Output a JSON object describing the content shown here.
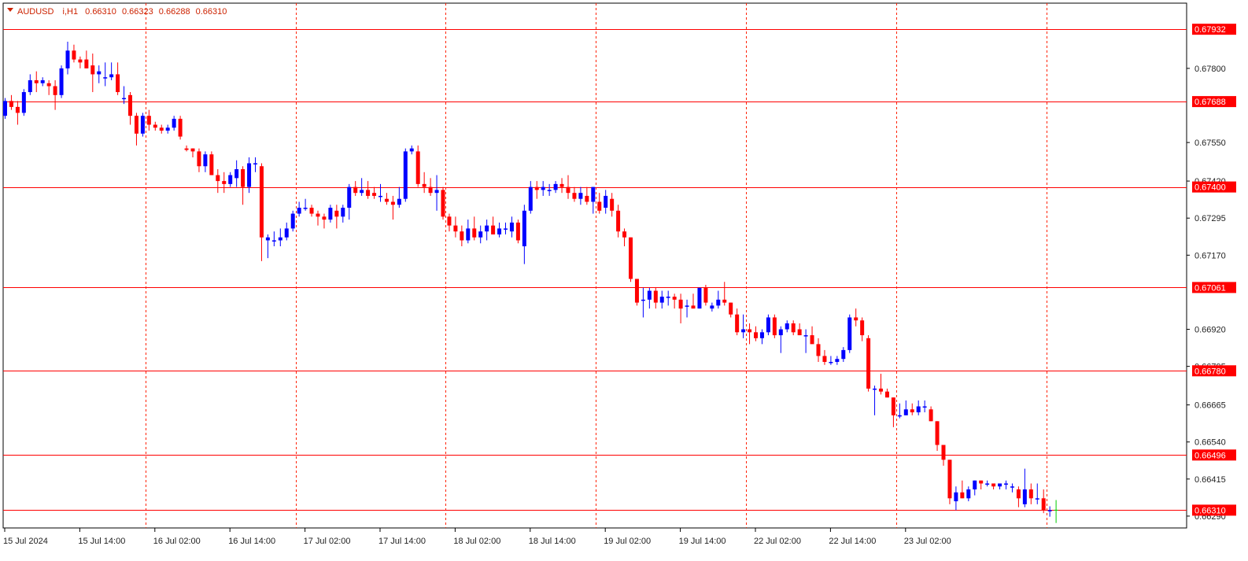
{
  "header": {
    "symbol": "AUDUSD",
    "timeframe": "i,H1",
    "open": "0.66310",
    "high": "0.66323",
    "low": "0.66288",
    "close": "0.66310"
  },
  "colors": {
    "bull": "#0000ff",
    "bear": "#ff0000",
    "level_line": "#ff0000",
    "session_line": "#ff2200",
    "axis": "#000000",
    "last_tick": "#00cc00"
  },
  "chart_data": {
    "type": "candlestick",
    "symbol": "AUDUSD",
    "timeframe": "H1",
    "ylim": [
      0.6625,
      0.6802
    ],
    "y_ticks": [
      "0.67800",
      "0.67550",
      "0.67420",
      "0.67295",
      "0.67170",
      "0.66920",
      "0.66795",
      "0.66665",
      "0.66540",
      "0.66415",
      "0.66290"
    ],
    "x_ticks": [
      "15 Jul 2024",
      "15 Jul 14:00",
      "16 Jul 02:00",
      "16 Jul 14:00",
      "17 Jul 02:00",
      "17 Jul 14:00",
      "18 Jul 02:00",
      "18 Jul 14:00",
      "19 Jul 02:00",
      "19 Jul 14:00",
      "22 Jul 02:00",
      "22 Jul 14:00",
      "23 Jul 02:00"
    ],
    "x_tick_bars": [
      0,
      12,
      24,
      36,
      48,
      60,
      72,
      84,
      96,
      108,
      120,
      132,
      144
    ],
    "session_separator_bars": [
      22,
      46,
      70,
      94,
      118,
      142,
      166
    ],
    "levels": [
      "0.67932",
      "0.67688",
      "0.67400",
      "0.67061",
      "0.66780",
      "0.66496",
      "0.66310"
    ],
    "candles": [
      [
        0.6764,
        0.677,
        0.6763,
        0.6769
      ],
      [
        0.6769,
        0.6771,
        0.6766,
        0.6767
      ],
      [
        0.6767,
        0.6769,
        0.6761,
        0.6765
      ],
      [
        0.6765,
        0.6773,
        0.6764,
        0.6772
      ],
      [
        0.6772,
        0.6778,
        0.6771,
        0.6776
      ],
      [
        0.6776,
        0.6779,
        0.6772,
        0.6775
      ],
      [
        0.6775,
        0.6777,
        0.6774,
        0.6776
      ],
      [
        0.6775,
        0.6776,
        0.6771,
        0.6774
      ],
      [
        0.6774,
        0.6776,
        0.6766,
        0.6771
      ],
      [
        0.6771,
        0.6781,
        0.677,
        0.678
      ],
      [
        0.678,
        0.6789,
        0.6778,
        0.6786
      ],
      [
        0.6786,
        0.6788,
        0.6782,
        0.6783
      ],
      [
        0.6783,
        0.6784,
        0.678,
        0.6782
      ],
      [
        0.6783,
        0.6786,
        0.678,
        0.678
      ],
      [
        0.6781,
        0.6785,
        0.6772,
        0.6778
      ],
      [
        0.6778,
        0.6781,
        0.6775,
        0.6779
      ],
      [
        0.6777,
        0.6782,
        0.6774,
        0.6777
      ],
      [
        0.6777,
        0.6782,
        0.6776,
        0.6778
      ],
      [
        0.6778,
        0.6782,
        0.6771,
        0.6772
      ],
      [
        0.677,
        0.6774,
        0.6768,
        0.677
      ],
      [
        0.6771,
        0.6772,
        0.6761,
        0.6764
      ],
      [
        0.6764,
        0.6765,
        0.6754,
        0.6758
      ],
      [
        0.6758,
        0.6765,
        0.6757,
        0.6764
      ],
      [
        0.6764,
        0.6766,
        0.6759,
        0.6761
      ],
      [
        0.6761,
        0.6762,
        0.6759,
        0.676
      ],
      [
        0.676,
        0.6761,
        0.6758,
        0.6759
      ],
      [
        0.6759,
        0.6761,
        0.6758,
        0.676
      ],
      [
        0.676,
        0.6764,
        0.6759,
        0.6763
      ],
      [
        0.6763,
        0.6764,
        0.6756,
        0.6757
      ],
      [
        0.6753,
        0.6754,
        0.6752,
        0.67525
      ],
      [
        0.6753,
        0.6753,
        0.675,
        0.6752
      ],
      [
        0.6752,
        0.6753,
        0.6745,
        0.6747
      ],
      [
        0.6747,
        0.6752,
        0.6745,
        0.6751
      ],
      [
        0.6751,
        0.6752,
        0.6744,
        0.6744
      ],
      [
        0.6744,
        0.6746,
        0.6738,
        0.6742
      ],
      [
        0.6742,
        0.6745,
        0.6738,
        0.6741
      ],
      [
        0.6741,
        0.6745,
        0.674,
        0.6744
      ],
      [
        0.6743,
        0.6749,
        0.674,
        0.6746
      ],
      [
        0.6746,
        0.6747,
        0.6734,
        0.674
      ],
      [
        0.674,
        0.675,
        0.6738,
        0.6748
      ],
      [
        0.6748,
        0.675,
        0.6745,
        0.6748
      ],
      [
        0.6747,
        0.6748,
        0.6715,
        0.6723
      ],
      [
        0.6722,
        0.6724,
        0.6716,
        0.6723
      ],
      [
        0.6722,
        0.6725,
        0.672,
        0.6722
      ],
      [
        0.6722,
        0.6726,
        0.672,
        0.6723
      ],
      [
        0.6723,
        0.6728,
        0.6722,
        0.6726
      ],
      [
        0.6726,
        0.6732,
        0.6725,
        0.6731
      ],
      [
        0.6731,
        0.6735,
        0.673,
        0.6733
      ],
      [
        0.6733,
        0.6736,
        0.6732,
        0.6733
      ],
      [
        0.6733,
        0.6734,
        0.673,
        0.6731
      ],
      [
        0.6731,
        0.6732,
        0.6727,
        0.673
      ],
      [
        0.673,
        0.6731,
        0.6726,
        0.6729
      ],
      [
        0.6729,
        0.6734,
        0.6728,
        0.6733
      ],
      [
        0.6732,
        0.6734,
        0.6726,
        0.673
      ],
      [
        0.673,
        0.6734,
        0.6728,
        0.6733
      ],
      [
        0.6733,
        0.6741,
        0.6729,
        0.674
      ],
      [
        0.674,
        0.6742,
        0.6737,
        0.6738
      ],
      [
        0.6738,
        0.6743,
        0.6737,
        0.6739
      ],
      [
        0.6739,
        0.6742,
        0.6736,
        0.6737
      ],
      [
        0.6738,
        0.674,
        0.6736,
        0.6737
      ],
      [
        0.6737,
        0.6741,
        0.6735,
        0.6737
      ],
      [
        0.6736,
        0.6738,
        0.6734,
        0.6735
      ],
      [
        0.6735,
        0.6737,
        0.6729,
        0.6734
      ],
      [
        0.6734,
        0.674,
        0.6733,
        0.6736
      ],
      [
        0.6736,
        0.6753,
        0.6735,
        0.6752
      ],
      [
        0.6752,
        0.6754,
        0.6751,
        0.6753
      ],
      [
        0.6752,
        0.6754,
        0.674,
        0.6741
      ],
      [
        0.6741,
        0.6745,
        0.6738,
        0.674
      ],
      [
        0.674,
        0.6743,
        0.6737,
        0.6738
      ],
      [
        0.6738,
        0.6744,
        0.6732,
        0.6739
      ],
      [
        0.6739,
        0.674,
        0.6729,
        0.673
      ],
      [
        0.673,
        0.6731,
        0.6725,
        0.6727
      ],
      [
        0.6727,
        0.673,
        0.6723,
        0.6725
      ],
      [
        0.6725,
        0.6727,
        0.672,
        0.6722
      ],
      [
        0.6722,
        0.6729,
        0.6721,
        0.6726
      ],
      [
        0.6726,
        0.673,
        0.6722,
        0.6723
      ],
      [
        0.6723,
        0.6727,
        0.6721,
        0.6725
      ],
      [
        0.6725,
        0.6729,
        0.6722,
        0.6727
      ],
      [
        0.6727,
        0.673,
        0.6724,
        0.6724
      ],
      [
        0.6724,
        0.6728,
        0.6723,
        0.6726
      ],
      [
        0.6726,
        0.6728,
        0.6724,
        0.6726
      ],
      [
        0.6725,
        0.673,
        0.6723,
        0.6728
      ],
      [
        0.6728,
        0.6729,
        0.6721,
        0.6722
      ],
      [
        0.672,
        0.6734,
        0.6714,
        0.6732
      ],
      [
        0.6732,
        0.6742,
        0.6731,
        0.674
      ],
      [
        0.674,
        0.6742,
        0.6736,
        0.6739
      ],
      [
        0.6739,
        0.6742,
        0.6737,
        0.674
      ],
      [
        0.6739,
        0.6741,
        0.6737,
        0.6739
      ],
      [
        0.6739,
        0.6742,
        0.6738,
        0.6741
      ],
      [
        0.6741,
        0.6743,
        0.6738,
        0.674
      ],
      [
        0.674,
        0.6744,
        0.6736,
        0.6738
      ],
      [
        0.6738,
        0.674,
        0.6735,
        0.6736
      ],
      [
        0.6736,
        0.674,
        0.6734,
        0.6738
      ],
      [
        0.6737,
        0.674,
        0.6734,
        0.6735
      ],
      [
        0.6735,
        0.674,
        0.6731,
        0.674
      ],
      [
        0.6735,
        0.6738,
        0.6731,
        0.6732
      ],
      [
        0.6733,
        0.6739,
        0.6731,
        0.6737
      ],
      [
        0.6736,
        0.6738,
        0.673,
        0.6732
      ],
      [
        0.6732,
        0.6734,
        0.6723,
        0.6725
      ],
      [
        0.6725,
        0.6726,
        0.672,
        0.6723
      ],
      [
        0.6723,
        0.6723,
        0.6708,
        0.6709
      ],
      [
        0.6709,
        0.6709,
        0.67,
        0.6701
      ],
      [
        0.6702,
        0.6706,
        0.6696,
        0.6702
      ],
      [
        0.6702,
        0.6706,
        0.6699,
        0.6705
      ],
      [
        0.6705,
        0.6706,
        0.6699,
        0.6701
      ],
      [
        0.6701,
        0.6705,
        0.6699,
        0.6703
      ],
      [
        0.6703,
        0.6705,
        0.67,
        0.6703
      ],
      [
        0.6703,
        0.6704,
        0.6699,
        0.6702
      ],
      [
        0.6702,
        0.6704,
        0.6694,
        0.6699
      ],
      [
        0.67,
        0.6702,
        0.6696,
        0.67
      ],
      [
        0.67,
        0.6704,
        0.6699,
        0.6699
      ],
      [
        0.6699,
        0.6706,
        0.6699,
        0.6706
      ],
      [
        0.6706,
        0.6707,
        0.67,
        0.6701
      ],
      [
        0.6699,
        0.6701,
        0.6698,
        0.67
      ],
      [
        0.67,
        0.6705,
        0.6699,
        0.6702
      ],
      [
        0.6702,
        0.6708,
        0.67,
        0.6701
      ],
      [
        0.6701,
        0.6701,
        0.6696,
        0.6697
      ],
      [
        0.6697,
        0.6699,
        0.669,
        0.6691
      ],
      [
        0.6691,
        0.6697,
        0.6689,
        0.6692
      ],
      [
        0.6692,
        0.6694,
        0.6687,
        0.6691
      ],
      [
        0.6691,
        0.6693,
        0.6688,
        0.6689
      ],
      [
        0.6689,
        0.6692,
        0.6687,
        0.6691
      ],
      [
        0.6691,
        0.6697,
        0.669,
        0.6696
      ],
      [
        0.6696,
        0.6697,
        0.6689,
        0.669
      ],
      [
        0.669,
        0.6693,
        0.6684,
        0.6692
      ],
      [
        0.6692,
        0.6695,
        0.6691,
        0.6694
      ],
      [
        0.6694,
        0.6695,
        0.669,
        0.6691
      ],
      [
        0.6692,
        0.6694,
        0.669,
        0.669
      ],
      [
        0.669,
        0.6692,
        0.6684,
        0.669
      ],
      [
        0.669,
        0.6693,
        0.6688,
        0.6687
      ],
      [
        0.6687,
        0.6689,
        0.6681,
        0.6683
      ],
      [
        0.6683,
        0.6685,
        0.668,
        0.6681
      ],
      [
        0.6681,
        0.6683,
        0.668,
        0.6681
      ],
      [
        0.6681,
        0.6683,
        0.668,
        0.6682
      ],
      [
        0.6682,
        0.6686,
        0.6681,
        0.6685
      ],
      [
        0.6685,
        0.6697,
        0.6684,
        0.6696
      ],
      [
        0.6696,
        0.6699,
        0.6693,
        0.6695
      ],
      [
        0.6695,
        0.6696,
        0.6688,
        0.669
      ],
      [
        0.6689,
        0.669,
        0.6671,
        0.6672
      ],
      [
        0.6672,
        0.6673,
        0.6663,
        0.6672
      ],
      [
        0.6672,
        0.6677,
        0.667,
        0.6671
      ],
      [
        0.6671,
        0.6672,
        0.6669,
        0.6669
      ],
      [
        0.6669,
        0.6669,
        0.6659,
        0.6663
      ],
      [
        0.6663,
        0.6667,
        0.6662,
        0.6663
      ],
      [
        0.6663,
        0.6668,
        0.6663,
        0.6665
      ],
      [
        0.6665,
        0.6667,
        0.6663,
        0.6664
      ],
      [
        0.6664,
        0.6668,
        0.6663,
        0.6666
      ],
      [
        0.6666,
        0.6668,
        0.6664,
        0.6666
      ],
      [
        0.6665,
        0.6666,
        0.6661,
        0.6661
      ],
      [
        0.6661,
        0.6661,
        0.6651,
        0.6653
      ],
      [
        0.6653,
        0.6653,
        0.6646,
        0.6648
      ],
      [
        0.6648,
        0.6648,
        0.6633,
        0.6635
      ],
      [
        0.6634,
        0.6639,
        0.6631,
        0.6637
      ],
      [
        0.6637,
        0.6641,
        0.6635,
        0.6635
      ],
      [
        0.6635,
        0.6639,
        0.6634,
        0.6638
      ],
      [
        0.6638,
        0.6641,
        0.6636,
        0.6641
      ],
      [
        0.6641,
        0.6641,
        0.6638,
        0.664
      ],
      [
        0.664,
        0.6641,
        0.6639,
        0.664
      ],
      [
        0.664,
        0.664,
        0.6638,
        0.6639
      ],
      [
        0.6639,
        0.664,
        0.6638,
        0.664
      ],
      [
        0.664,
        0.6641,
        0.6638,
        0.664
      ],
      [
        0.6639,
        0.664,
        0.6637,
        0.6639
      ],
      [
        0.6638,
        0.6639,
        0.6632,
        0.6635
      ],
      [
        0.6633,
        0.6645,
        0.6632,
        0.6638
      ],
      [
        0.6638,
        0.664,
        0.6633,
        0.6635
      ],
      [
        0.6635,
        0.664,
        0.6633,
        0.6635
      ],
      [
        0.6635,
        0.6638,
        0.663,
        0.6631
      ],
      [
        0.6631,
        0.66323,
        0.66288,
        0.6631
      ]
    ]
  }
}
